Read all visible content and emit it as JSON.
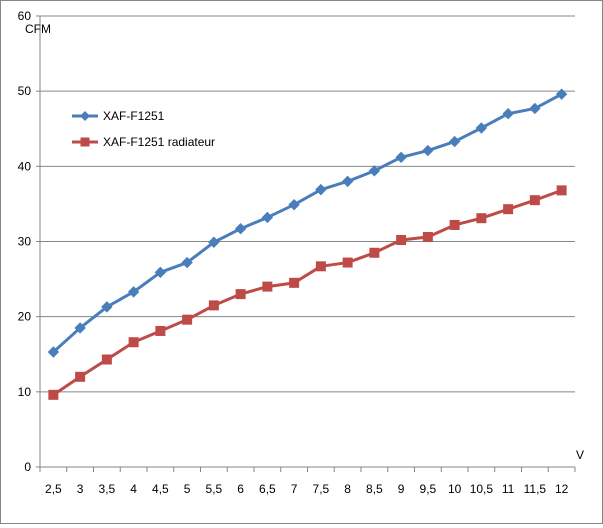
{
  "chart_data": {
    "type": "line",
    "title": "",
    "ylabel": "CFM",
    "xlabel": "V",
    "ylim": [
      0,
      60
    ],
    "yticks": [
      0,
      10,
      20,
      30,
      40,
      50,
      60
    ],
    "categories": [
      "2,5",
      "3",
      "3,5",
      "4",
      "4,5",
      "5",
      "5,5",
      "6",
      "6,5",
      "7",
      "7,5",
      "8",
      "8,5",
      "9",
      "9,5",
      "10",
      "10,5",
      "11",
      "11,5",
      "12"
    ],
    "grid": "horizontal",
    "legend_position": "top-left",
    "series": [
      {
        "name": "XAF-F1251",
        "color": "#4a7ebb",
        "marker": "diamond",
        "values": [
          15.3,
          18.5,
          21.3,
          23.3,
          25.9,
          27.2,
          29.9,
          31.7,
          33.2,
          34.9,
          36.9,
          38.0,
          39.4,
          41.2,
          42.1,
          43.3,
          45.1,
          47.0,
          47.7,
          49.6
        ]
      },
      {
        "name": "XAF-F1251 radiateur",
        "color": "#be4b48",
        "marker": "square",
        "values": [
          9.6,
          12.0,
          14.3,
          16.6,
          18.1,
          19.6,
          21.5,
          23.0,
          24.0,
          24.5,
          26.7,
          27.2,
          28.5,
          30.2,
          30.6,
          32.2,
          33.1,
          34.3,
          35.5,
          36.8
        ]
      }
    ]
  }
}
